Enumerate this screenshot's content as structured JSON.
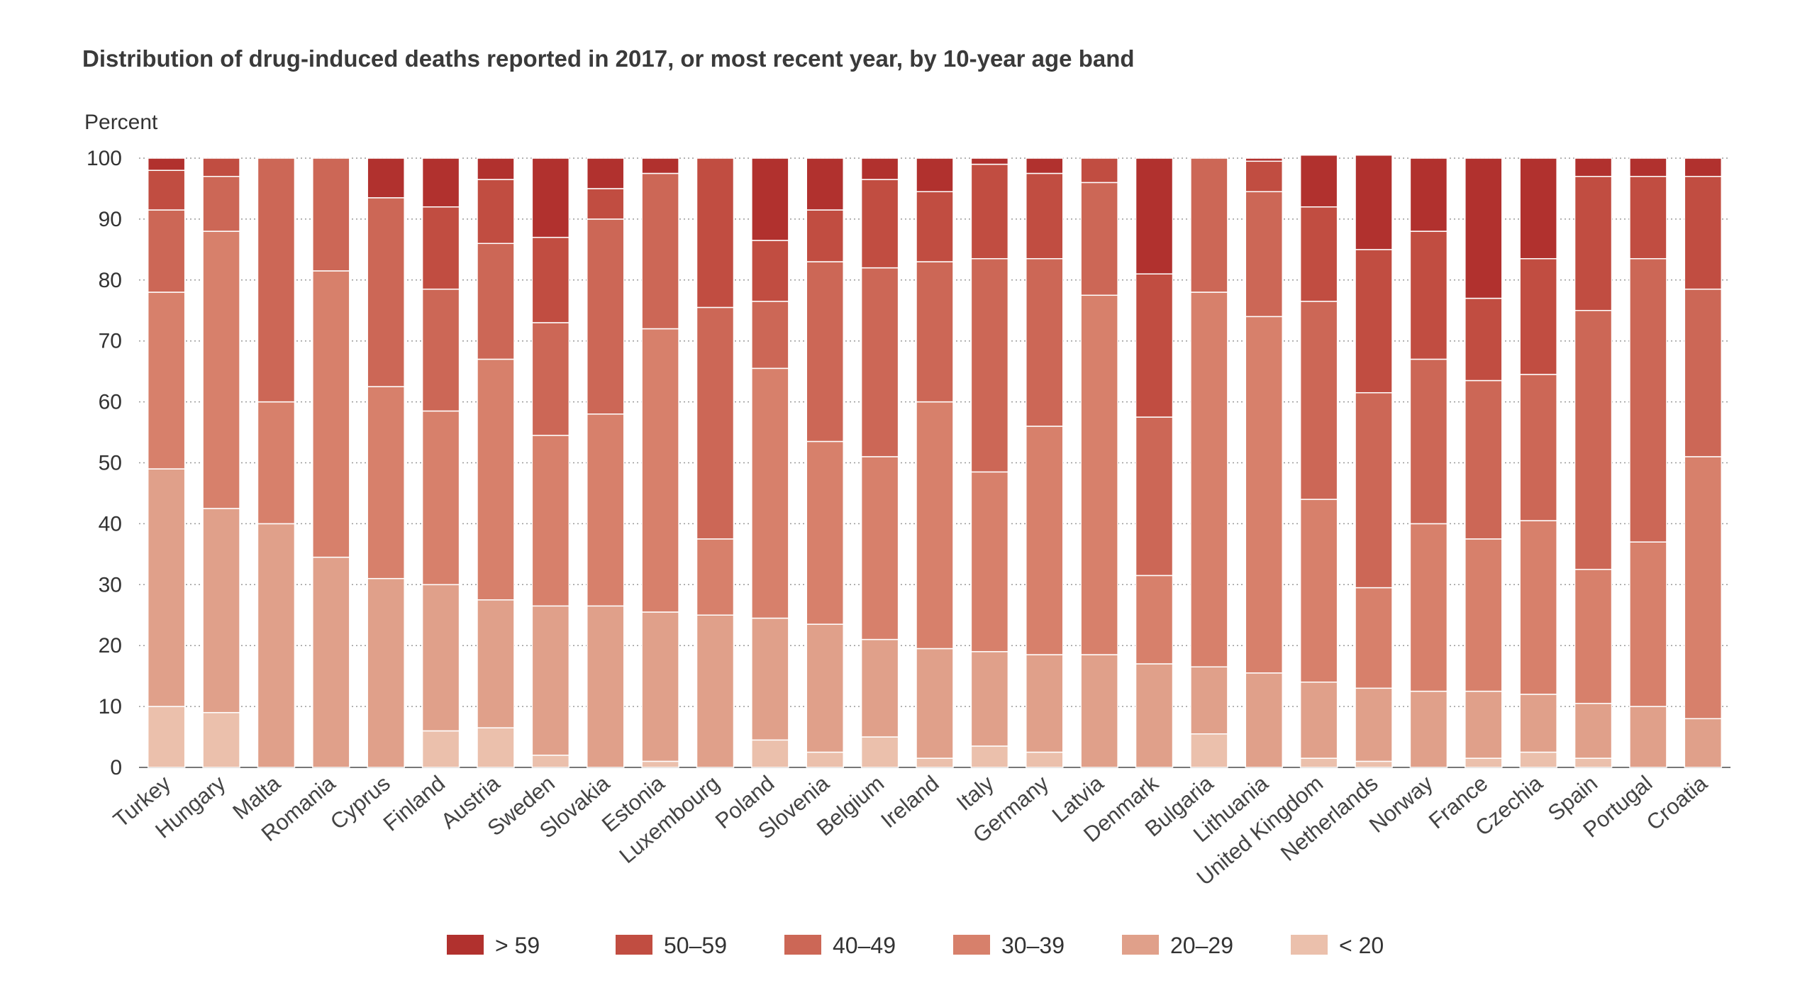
{
  "chart_data": {
    "type": "bar",
    "stacked": true,
    "title": "Distribution of drug-induced deaths reported in 2017, or most recent year, by 10-year age band",
    "ylabel": "Percent",
    "xlabel": "",
    "ylim": [
      0,
      100
    ],
    "yticks": [
      0,
      10,
      20,
      30,
      40,
      50,
      60,
      70,
      80,
      90,
      100
    ],
    "grid": "horizontal dotted",
    "legend_position": "bottom",
    "categories": [
      "Turkey",
      "Hungary",
      "Malta",
      "Romania",
      "Cyprus",
      "Finland",
      "Austria",
      "Sweden",
      "Slovakia",
      "Estonia",
      "Luxembourg",
      "Poland",
      "Slovenia",
      "Belgium",
      "Ireland",
      "Italy",
      "Germany",
      "Latvia",
      "Denmark",
      "Bulgaria",
      "Lithuania",
      "United Kingdom",
      "Netherlands",
      "Norway",
      "France",
      "Czechia",
      "Spain",
      "Portugal",
      "Croatia"
    ],
    "series": [
      {
        "name": "< 20",
        "color": "#ebc0ac",
        "values": [
          10,
          9,
          0,
          0,
          0,
          6,
          6.5,
          2,
          0,
          1,
          0,
          4.5,
          2.5,
          5,
          1.5,
          3.5,
          2.5,
          0,
          0,
          5.5,
          0,
          1.5,
          1,
          0,
          1.5,
          2.5,
          1.5,
          0,
          0
        ]
      },
      {
        "name": "20–29",
        "color": "#e0a08a",
        "values": [
          39,
          33.5,
          40,
          34.5,
          31,
          24,
          21,
          24.5,
          26.5,
          24.5,
          25,
          20,
          21,
          16,
          18,
          15.5,
          16,
          18.5,
          17,
          11,
          15.5,
          12.5,
          12,
          12.5,
          11,
          9.5,
          9,
          10,
          8
        ]
      },
      {
        "name": "30–39",
        "color": "#d7806b",
        "values": [
          29,
          45.5,
          20,
          47,
          31.5,
          28.5,
          39.5,
          28,
          31.5,
          46.5,
          12.5,
          41,
          30,
          30,
          40.5,
          29.5,
          37.5,
          59,
          14.5,
          61.5,
          58.5,
          30,
          16.5,
          27.5,
          25,
          28.5,
          22,
          27,
          43
        ]
      },
      {
        "name": "40–49",
        "color": "#cc6756",
        "values": [
          13.5,
          9,
          40,
          18.5,
          31,
          20,
          19,
          18.5,
          32,
          25.5,
          38,
          11,
          29.5,
          31,
          23,
          35,
          27.5,
          18.5,
          26,
          22,
          20.5,
          32.5,
          32,
          27,
          26,
          24,
          42.5,
          46.5,
          27.5
        ]
      },
      {
        "name": "50–59",
        "color": "#c14d41",
        "values": [
          6.5,
          3,
          0,
          0,
          0,
          13.5,
          10.5,
          14,
          5,
          0,
          24.5,
          10,
          8.5,
          14.5,
          11.5,
          15.5,
          14,
          4,
          23.5,
          0,
          5,
          15.5,
          23.5,
          21,
          13.5,
          19,
          22,
          13.5,
          18.5
        ]
      },
      {
        "name": "> 59",
        "color": "#b1312e",
        "values": [
          2,
          0,
          0,
          0,
          6.5,
          8,
          3.5,
          13,
          5,
          2.5,
          0,
          13.5,
          8.5,
          3.5,
          5.5,
          1,
          2.5,
          0,
          19,
          0,
          0.5,
          8.5,
          15.5,
          12,
          23,
          16.5,
          3,
          3,
          3
        ]
      }
    ]
  }
}
